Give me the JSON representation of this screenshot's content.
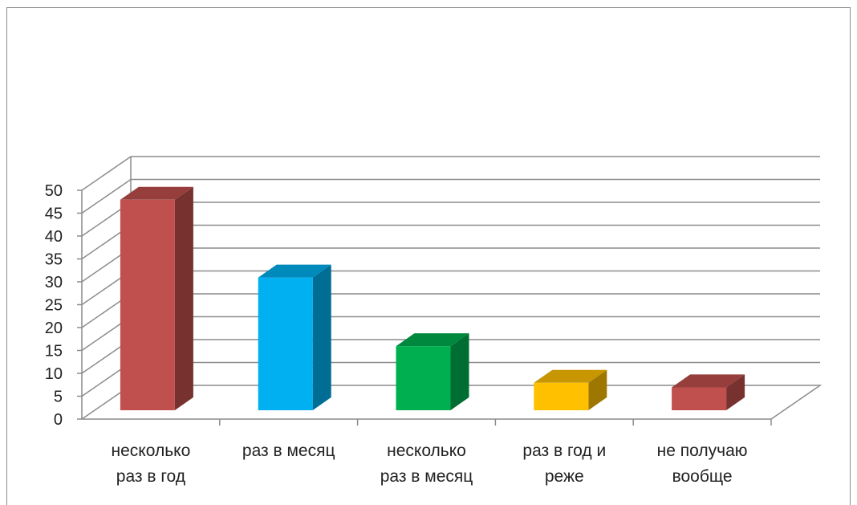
{
  "chart_data": {
    "type": "bar",
    "categories": [
      [
        "несколько",
        "раз в год"
      ],
      [
        "раз в месяц"
      ],
      [
        "несколько",
        "раз в месяц"
      ],
      [
        "раз в год и",
        "реже"
      ],
      [
        "не получаю",
        "вообще"
      ]
    ],
    "values": [
      46,
      29,
      14,
      6,
      5
    ],
    "colors": [
      "#c0504d",
      "#00b0f0",
      "#00b050",
      "#ffc000",
      "#c0504d"
    ],
    "ylim": [
      0,
      50
    ],
    "yticks": [
      "0",
      "5",
      "10",
      "15",
      "20",
      "25",
      "30",
      "35",
      "40",
      "45",
      "50"
    ],
    "grid": true,
    "style": "3d-column",
    "title": "",
    "xlabel": "",
    "ylabel": ""
  }
}
